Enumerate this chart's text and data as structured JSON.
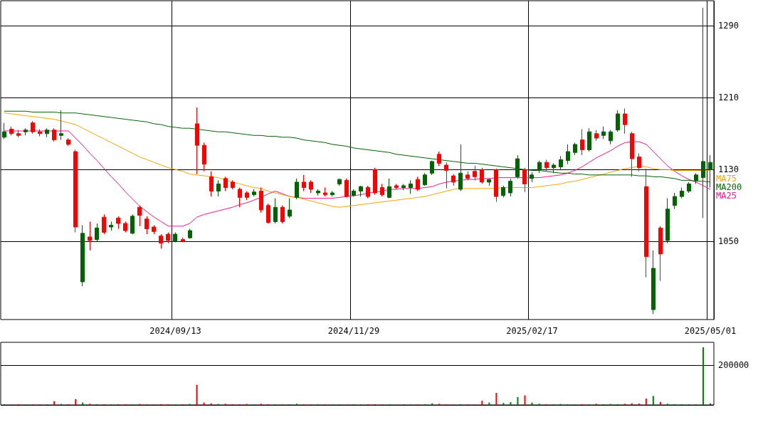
{
  "chart_data": [
    {
      "type": "candlestick",
      "categories": [
        null,
        null,
        null,
        null,
        null,
        null,
        null,
        null,
        null,
        null,
        null,
        null,
        null,
        null,
        null,
        null,
        null,
        null,
        null,
        null,
        null,
        null,
        null,
        null,
        "2024/09/13",
        null,
        null,
        null,
        null,
        null,
        null,
        null,
        null,
        null,
        null,
        null,
        null,
        null,
        null,
        null,
        null,
        null,
        null,
        null,
        null,
        null,
        null,
        null,
        null,
        "2024/11/29",
        null,
        null,
        null,
        null,
        null,
        null,
        null,
        null,
        null,
        null,
        null,
        null,
        null,
        null,
        null,
        null,
        null,
        null,
        null,
        null,
        null,
        null,
        null,
        null,
        "2025/02/17",
        null,
        null,
        null,
        null,
        null,
        null,
        null,
        null,
        null,
        null,
        null,
        null,
        null,
        null,
        null,
        null,
        null,
        null,
        null,
        null,
        null,
        null,
        null,
        null,
        "2025/05/01"
      ],
      "ohlc": [
        [
          1166,
          1182,
          1164,
          1172
        ],
        [
          1175,
          1178,
          1168,
          1170
        ],
        [
          1170,
          1174,
          1166,
          1168
        ],
        [
          1172,
          1176,
          1168,
          1174
        ],
        [
          1182,
          1184,
          1170,
          1172
        ],
        [
          1172,
          1175,
          1167,
          1170
        ],
        [
          1170,
          1176,
          1166,
          1174
        ],
        [
          1174,
          1176,
          1161,
          1163
        ],
        [
          1168,
          1196,
          1163,
          1170
        ],
        [
          1163,
          1165,
          1156,
          1158
        ],
        [
          1150,
          1152,
          1060,
          1066
        ],
        [
          1005,
          1068,
          1000,
          1059
        ],
        [
          1055,
          1072,
          1040,
          1051
        ],
        [
          1052,
          1070,
          1050,
          1065
        ],
        [
          1077,
          1080,
          1058,
          1060
        ],
        [
          1066,
          1072,
          1062,
          1068
        ],
        [
          1076,
          1078,
          1064,
          1070
        ],
        [
          1070,
          1072,
          1060,
          1062
        ],
        [
          1059,
          1080,
          1058,
          1078
        ],
        [
          1088,
          1090,
          1067,
          1079
        ],
        [
          1075,
          1078,
          1058,
          1064
        ],
        [
          1066,
          1068,
          1058,
          1061
        ],
        [
          1056,
          1058,
          1042,
          1048
        ],
        [
          1058,
          1060,
          1048,
          1051
        ],
        [
          1050,
          1060,
          1049,
          1058
        ],
        [
          1052,
          1054,
          1049,
          1050
        ],
        [
          1054,
          1064,
          1053,
          1062
        ],
        [
          1181,
          1199,
          1125,
          1157
        ],
        [
          1157,
          1160,
          1128,
          1136
        ],
        [
          1122,
          1128,
          1100,
          1106
        ],
        [
          1106,
          1118,
          1100,
          1114
        ],
        [
          1120,
          1122,
          1106,
          1110
        ],
        [
          1116,
          1118,
          1108,
          1110
        ],
        [
          1108,
          1110,
          1088,
          1099
        ],
        [
          1104,
          1106,
          1096,
          1099
        ],
        [
          1102,
          1108,
          1100,
          1105
        ],
        [
          1106,
          1110,
          1082,
          1085
        ],
        [
          1090,
          1092,
          1070,
          1071
        ],
        [
          1072,
          1098,
          1070,
          1088
        ],
        [
          1088,
          1090,
          1070,
          1072
        ],
        [
          1078,
          1098,
          1076,
          1085
        ],
        [
          1099,
          1120,
          1097,
          1116
        ],
        [
          1116,
          1124,
          1106,
          1110
        ],
        [
          1116,
          1118,
          1104,
          1108
        ],
        [
          1104,
          1108,
          1101,
          1106
        ],
        [
          1104,
          1110,
          1100,
          1102
        ],
        [
          1102,
          1106,
          1100,
          1104
        ],
        [
          1114,
          1120,
          1112,
          1119
        ],
        [
          1118,
          1120,
          1099,
          1100
        ],
        [
          1101,
          1108,
          1100,
          1106
        ],
        [
          1106,
          1112,
          1100,
          1111
        ],
        [
          1110,
          1112,
          1098,
          1100
        ],
        [
          1130,
          1132,
          1102,
          1104
        ],
        [
          1110,
          1114,
          1100,
          1102
        ],
        [
          1099,
          1120,
          1098,
          1111
        ],
        [
          1112,
          1114,
          1108,
          1110
        ],
        [
          1110,
          1114,
          1107,
          1112
        ],
        [
          1110,
          1118,
          1103,
          1114
        ],
        [
          1119,
          1122,
          1106,
          1108
        ],
        [
          1113,
          1126,
          1112,
          1124
        ],
        [
          1126,
          1140,
          1124,
          1139
        ],
        [
          1147,
          1150,
          1134,
          1137
        ],
        [
          1135,
          1138,
          1109,
          1129
        ],
        [
          1123,
          1125,
          1112,
          1116
        ],
        [
          1108,
          1158,
          1106,
          1126
        ],
        [
          1124,
          1128,
          1118,
          1120
        ],
        [
          1128,
          1134,
          1118,
          1122
        ],
        [
          1130,
          1132,
          1114,
          1116
        ],
        [
          1116,
          1120,
          1112,
          1119
        ],
        [
          1130,
          1131,
          1094,
          1100
        ],
        [
          1101,
          1112,
          1099,
          1110
        ],
        [
          1104,
          1120,
          1100,
          1117
        ],
        [
          1122,
          1146,
          1120,
          1142
        ],
        [
          1130,
          1132,
          1105,
          1114
        ],
        [
          1120,
          1127,
          1116,
          1124
        ],
        [
          1130,
          1140,
          1126,
          1138
        ],
        [
          1138,
          1141,
          1128,
          1132
        ],
        [
          1132,
          1137,
          1126,
          1135
        ],
        [
          1133,
          1145,
          1130,
          1141
        ],
        [
          1140,
          1158,
          1136,
          1150
        ],
        [
          1149,
          1160,
          1146,
          1158
        ],
        [
          1163,
          1175,
          1146,
          1152
        ],
        [
          1152,
          1176,
          1150,
          1172
        ],
        [
          1170,
          1174,
          1162,
          1165
        ],
        [
          1168,
          1178,
          1164,
          1172
        ],
        [
          1162,
          1174,
          1158,
          1172
        ],
        [
          1174,
          1196,
          1172,
          1192
        ],
        [
          1192,
          1198,
          1170,
          1180
        ],
        [
          1170,
          1172,
          1122,
          1142
        ],
        [
          1144,
          1148,
          1128,
          1132
        ],
        [
          1111,
          1131,
          1010,
          1033
        ],
        [
          974,
          1040,
          969,
          1020
        ],
        [
          1065,
          1067,
          1006,
          1036
        ],
        [
          1051,
          1098,
          1048,
          1086
        ],
        [
          1090,
          1104,
          1086,
          1100
        ],
        [
          1100,
          1110,
          1098,
          1106
        ],
        [
          1106,
          1116,
          1104,
          1114
        ],
        [
          1118,
          1126,
          1114,
          1124
        ],
        [
          1121,
          1310,
          1076,
          1139
        ],
        [
          1130,
          1146,
          1110,
          1138
        ]
      ],
      "series": [
        {
          "name": "MA25",
          "type": "line",
          "color": "#ff1493",
          "values": [
            1173,
            1173,
            1173,
            1173,
            1173,
            1173,
            1173,
            1173,
            1173,
            1173,
            1165,
            1157,
            1148,
            1140,
            1131,
            1122,
            1114,
            1105,
            1097,
            1089,
            1083,
            1077,
            1072,
            1067,
            1067,
            1067,
            1070,
            1077,
            1080,
            1082,
            1084,
            1086,
            1088,
            1091,
            1093,
            1096,
            1099,
            1103,
            1106,
            1103,
            1100,
            1099,
            1098,
            1098,
            1098,
            1098,
            1098,
            1099,
            1100,
            1101,
            1102,
            1104,
            1105,
            1106,
            1108,
            1108,
            1109,
            1109,
            1109,
            1110,
            1111,
            1114,
            1116,
            1117,
            1118,
            1119,
            1119,
            1120,
            1120,
            1121,
            1121,
            1121,
            1121,
            1121,
            1121,
            1121,
            1122,
            1123,
            1124,
            1126,
            1129,
            1133,
            1138,
            1143,
            1147,
            1151,
            1156,
            1160,
            1161,
            1161,
            1158,
            1150,
            1142,
            1134,
            1128,
            1123,
            1119,
            1116,
            1112,
            1108
          ]
        },
        {
          "name": "MA75",
          "type": "line",
          "color": "#ffa500",
          "values": [
            1193,
            1192,
            1191,
            1190,
            1189,
            1188,
            1187,
            1186,
            1184,
            1182,
            1180,
            1176,
            1172,
            1168,
            1164,
            1160,
            1156,
            1152,
            1148,
            1144,
            1141,
            1138,
            1135,
            1132,
            1130,
            1128,
            1125,
            1124,
            1123,
            1122,
            1121,
            1118,
            1116,
            1114,
            1112,
            1110,
            1109,
            1106,
            1104,
            1102,
            1100,
            1099,
            1097,
            1095,
            1093,
            1091,
            1089,
            1088,
            1089,
            1090,
            1091,
            1092,
            1093,
            1094,
            1095,
            1096,
            1097,
            1098,
            1099,
            1100,
            1102,
            1104,
            1106,
            1108,
            1109,
            1109,
            1109,
            1109,
            1109,
            1109,
            1110,
            1110,
            1110,
            1110,
            1110,
            1111,
            1112,
            1113,
            1114,
            1116,
            1117,
            1119,
            1121,
            1123,
            1125,
            1127,
            1129,
            1131,
            1132,
            1134,
            1133,
            1131,
            1130,
            1130,
            1129,
            1129,
            1129,
            1129,
            1129,
            1129
          ]
        },
        {
          "name": "MA200",
          "type": "line",
          "color": "#006400",
          "values": [
            1195,
            1195,
            1195,
            1195,
            1194,
            1194,
            1194,
            1194,
            1193,
            1193,
            1193,
            1192,
            1191,
            1190,
            1189,
            1188,
            1187,
            1186,
            1185,
            1184,
            1183,
            1181,
            1180,
            1178,
            1177,
            1176,
            1176,
            1175,
            1174,
            1173,
            1172,
            1172,
            1171,
            1170,
            1169,
            1168,
            1168,
            1167,
            1167,
            1166,
            1166,
            1165,
            1163,
            1162,
            1161,
            1160,
            1158,
            1157,
            1156,
            1154,
            1153,
            1152,
            1151,
            1150,
            1149,
            1147,
            1146,
            1145,
            1144,
            1143,
            1142,
            1141,
            1140,
            1139,
            1138,
            1137,
            1137,
            1136,
            1135,
            1134,
            1133,
            1132,
            1131,
            1130,
            1129,
            1129,
            1128,
            1127,
            1126,
            1126,
            1125,
            1125,
            1124,
            1124,
            1124,
            1124,
            1124,
            1124,
            1124,
            1123,
            1123,
            1122,
            1122,
            1121,
            1120,
            1118,
            1118,
            1117,
            1117,
            1116
          ]
        }
      ],
      "ylim": [
        963,
        1318
      ],
      "yticks": [
        1050,
        1130,
        1210,
        1290
      ],
      "grid": true
    },
    {
      "type": "bar",
      "categories": [
        null,
        null,
        null,
        null,
        null,
        null,
        null,
        null,
        null,
        null,
        null,
        null,
        null,
        null,
        null,
        null,
        null,
        null,
        null,
        null,
        null,
        null,
        null,
        null,
        null,
        null,
        null,
        null,
        null,
        null,
        null,
        null,
        null,
        null,
        null,
        null,
        null,
        null,
        null,
        null,
        null,
        null,
        null,
        null,
        null,
        null,
        null,
        null,
        null,
        null,
        null,
        null,
        null,
        null,
        null,
        null,
        null,
        null,
        null,
        null,
        null,
        null,
        null,
        null,
        null,
        null,
        null,
        null,
        null,
        null,
        null,
        null,
        null,
        null,
        null,
        null,
        null,
        null,
        null,
        null,
        null,
        null,
        null,
        null,
        null,
        null,
        null,
        null,
        null,
        null,
        null,
        null,
        null,
        null,
        null,
        null,
        null,
        null,
        null,
        null
      ],
      "values": [
        3000,
        2000,
        4000,
        2000,
        3000,
        2000,
        3000,
        19000,
        5000,
        4000,
        29000,
        12000,
        6000,
        4000,
        3000,
        2000,
        4000,
        3000,
        2000,
        5000,
        3000,
        2000,
        4000,
        3000,
        2000,
        3000,
        5000,
        101000,
        12000,
        8000,
        5000,
        6000,
        4000,
        3000,
        5000,
        2000,
        6000,
        4000,
        3000,
        2000,
        3000,
        6000,
        3000,
        2000,
        2000,
        3000,
        2000,
        3000,
        2000,
        3000,
        2000,
        3000,
        4000,
        2000,
        3000,
        2000,
        3000,
        2000,
        3000,
        4000,
        8000,
        6000,
        3000,
        2000,
        4000,
        3000,
        2000,
        21000,
        12000,
        61000,
        10000,
        14000,
        40000,
        48000,
        12000,
        6000,
        4000,
        3000,
        5000,
        3000,
        2000,
        4000,
        3000,
        6000,
        3000,
        5000,
        4000,
        6000,
        8000,
        7000,
        32000,
        45000,
        15000,
        6000,
        4000,
        3000,
        3000,
        2000,
        290000,
        8000
      ],
      "colors": [
        "#008000",
        "#ff0000",
        "#ff0000",
        "#008000",
        "#ff0000",
        "#ff0000",
        "#008000",
        "#ff0000",
        "#008000",
        "#ff0000",
        "#ff0000",
        "#008000",
        "#ff0000",
        "#008000",
        "#ff0000",
        "#008000",
        "#ff0000",
        "#ff0000",
        "#008000",
        "#ff0000",
        "#ff0000",
        "#ff0000",
        "#ff0000",
        "#ff0000",
        "#008000",
        "#ff0000",
        "#008000",
        "#ff0000",
        "#ff0000",
        "#ff0000",
        "#008000",
        "#ff0000",
        "#ff0000",
        "#ff0000",
        "#ff0000",
        "#008000",
        "#ff0000",
        "#ff0000",
        "#008000",
        "#ff0000",
        "#008000",
        "#008000",
        "#ff0000",
        "#ff0000",
        "#008000",
        "#ff0000",
        "#008000",
        "#008000",
        "#ff0000",
        "#008000",
        "#008000",
        "#ff0000",
        "#ff0000",
        "#ff0000",
        "#008000",
        "#ff0000",
        "#008000",
        "#008000",
        "#ff0000",
        "#008000",
        "#008000",
        "#ff0000",
        "#ff0000",
        "#ff0000",
        "#008000",
        "#ff0000",
        "#ff0000",
        "#ff0000",
        "#008000",
        "#ff0000",
        "#008000",
        "#008000",
        "#008000",
        "#ff0000",
        "#008000",
        "#008000",
        "#ff0000",
        "#008000",
        "#008000",
        "#008000",
        "#008000",
        "#ff0000",
        "#008000",
        "#ff0000",
        "#008000",
        "#008000",
        "#008000",
        "#ff0000",
        "#ff0000",
        "#ff0000",
        "#ff0000",
        "#008000",
        "#ff0000",
        "#008000",
        "#008000",
        "#008000",
        "#008000",
        "#008000",
        "#008000",
        "#008000"
      ],
      "ylim": [
        0,
        315000
      ],
      "yticks": [
        {
          "value": 0,
          "label": null
        },
        200000
      ],
      "grid": "y"
    }
  ]
}
